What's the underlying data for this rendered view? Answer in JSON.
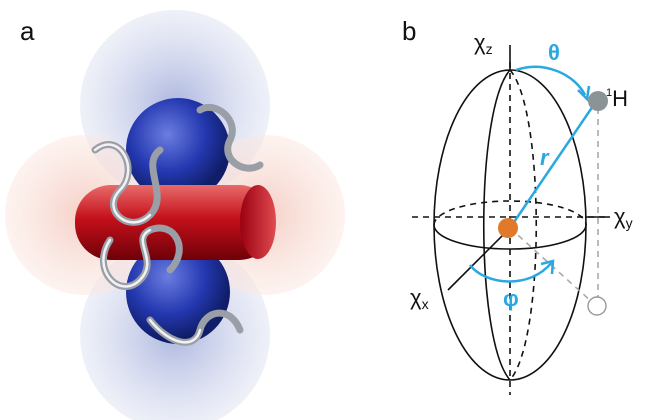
{
  "panels": [
    {
      "label": "a"
    },
    {
      "label": "b",
      "labels": {
        "chi_z": {
          "symbol": "χ",
          "subscript": "z"
        },
        "theta": "θ",
        "proton": {
          "superscript": "1",
          "symbol": "H"
        },
        "r": "r",
        "chi_y": {
          "symbol": "χ",
          "subscript": "y"
        },
        "chi_x": {
          "symbol": "χ",
          "subscript": "x"
        },
        "phi": "φ"
      }
    }
  ]
}
